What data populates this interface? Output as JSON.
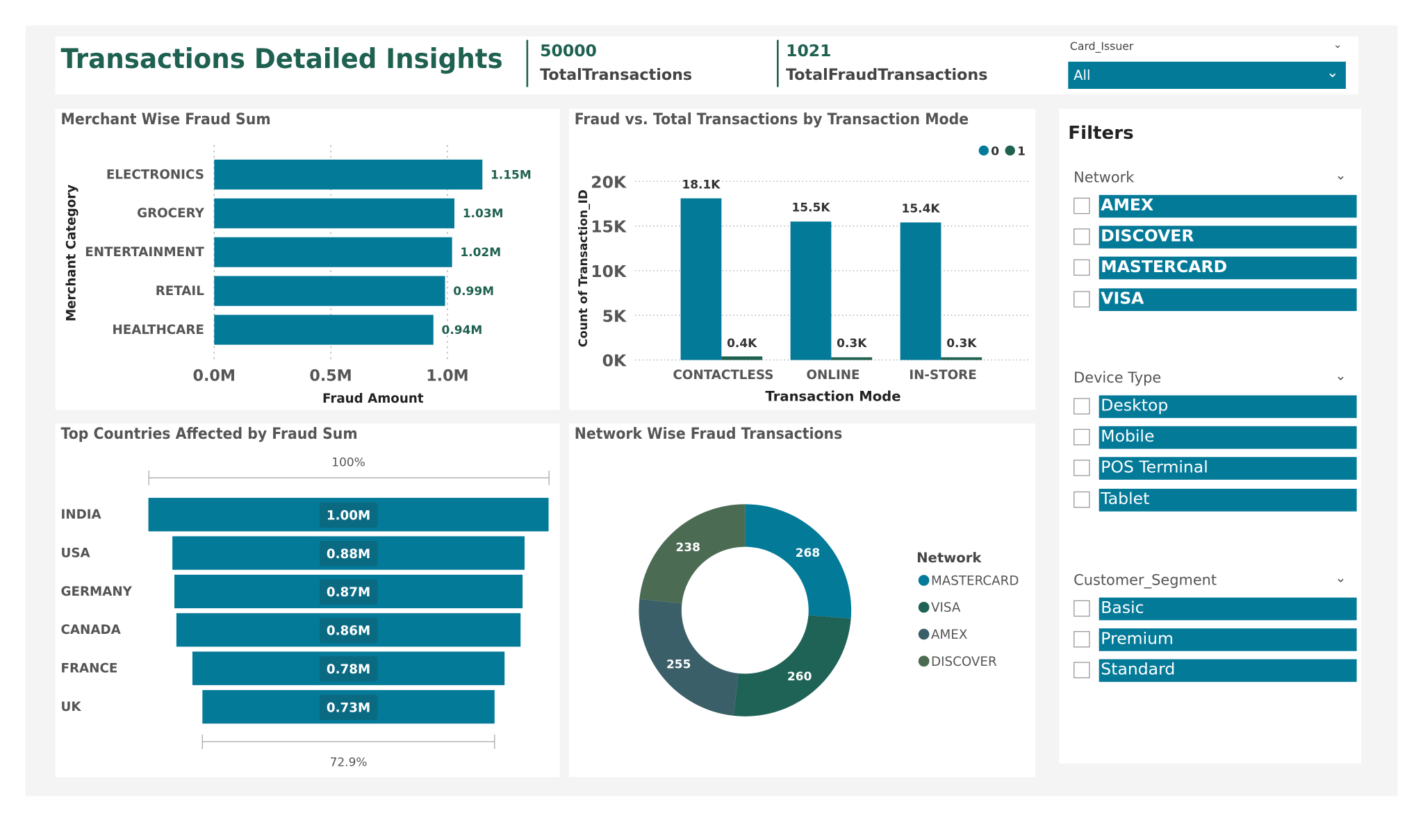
{
  "header": {
    "title": "Transactions Detailed Insights",
    "kpis": [
      {
        "value": "50000",
        "label": "TotalTransactions"
      },
      {
        "value": "1021",
        "label": "TotalFraudTransactions"
      }
    ],
    "card_issuer": {
      "label": "Card_Issuer",
      "selected": "All"
    }
  },
  "colors": {
    "teal": "#047a99",
    "dark_green": "#1f6150",
    "visa": "#1f6356",
    "amex": "#3b5f68",
    "discover": "#4b6b52"
  },
  "filters": {
    "title": "Filters",
    "sections": [
      {
        "label": "Network",
        "items": [
          "AMEX",
          "DISCOVER",
          "MASTERCARD",
          "VISA"
        ]
      },
      {
        "label": "Device Type",
        "items": [
          "Desktop",
          "Mobile",
          "POS Terminal",
          "Tablet"
        ]
      },
      {
        "label": "Customer_Segment",
        "items": [
          "Basic",
          "Premium",
          "Standard"
        ]
      }
    ]
  },
  "chart_data": [
    {
      "type": "bar",
      "orientation": "horizontal",
      "title": "Merchant Wise Fraud Sum",
      "xlabel": "Fraud Amount",
      "ylabel": "Merchant Category",
      "categories": [
        "ELECTRONICS",
        "GROCERY",
        "ENTERTAINMENT",
        "RETAIL",
        "HEALTHCARE"
      ],
      "values": [
        1.15,
        1.03,
        1.02,
        0.99,
        0.94
      ],
      "data_labels": [
        "1.15M",
        "1.03M",
        "1.02M",
        "0.99M",
        "0.94M"
      ],
      "xticks": [
        "0.0M",
        "0.5M",
        "1.0M"
      ],
      "xlim": [
        0,
        1.2
      ],
      "unit": "M",
      "grid": true
    },
    {
      "type": "bar",
      "title": "Fraud vs. Total Transactions by Transaction Mode",
      "xlabel": "Transaction Mode",
      "ylabel": "Count of Transaction_ID",
      "categories": [
        "CONTACTLESS",
        "ONLINE",
        "IN-STORE"
      ],
      "yticks": [
        "0K",
        "5K",
        "10K",
        "15K",
        "20K"
      ],
      "ylim": [
        0,
        20000
      ],
      "legend": "top-right",
      "grid": true,
      "series": [
        {
          "name": "0",
          "values": [
            18100,
            15500,
            15400
          ],
          "labels": [
            "18.1K",
            "15.5K",
            "15.4K"
          ]
        },
        {
          "name": "1",
          "values": [
            400,
            300,
            300
          ],
          "labels": [
            "0.4K",
            "0.3K",
            "0.3K"
          ]
        }
      ]
    },
    {
      "type": "funnel",
      "title": "Top Countries Affected by Fraud Sum",
      "categories": [
        "INDIA",
        "USA",
        "GERMANY",
        "CANADA",
        "FRANCE",
        "UK"
      ],
      "values": [
        1.0,
        0.88,
        0.87,
        0.86,
        0.78,
        0.73
      ],
      "data_labels": [
        "1.00M",
        "0.88M",
        "0.87M",
        "0.86M",
        "0.78M",
        "0.73M"
      ],
      "top_label": "100%",
      "bottom_label": "72.9%"
    },
    {
      "type": "pie",
      "donut": true,
      "title": "Network Wise Fraud Transactions",
      "legend_title": "Network",
      "legend": "right",
      "categories": [
        "MASTERCARD",
        "VISA",
        "AMEX",
        "DISCOVER"
      ],
      "values": [
        268,
        260,
        255,
        238
      ]
    }
  ]
}
